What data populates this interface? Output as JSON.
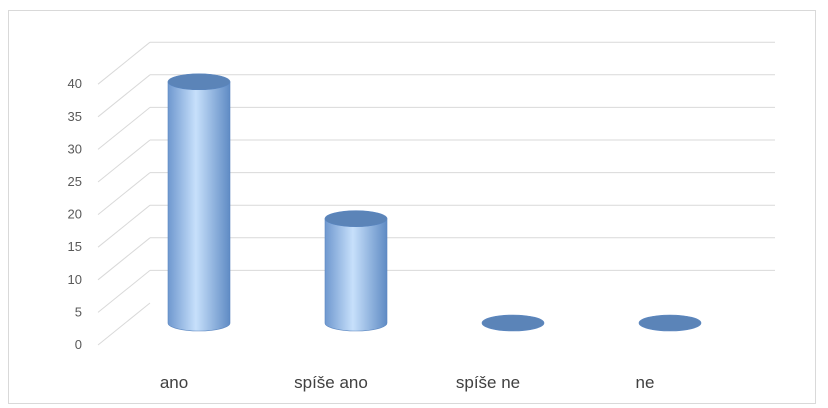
{
  "chart_data": {
    "type": "bar",
    "style": "3d-cylinder",
    "categories": [
      "ano",
      "spíše ano",
      "spíše ne",
      "ne"
    ],
    "values": [
      37,
      16,
      0,
      0
    ],
    "ylim": [
      0,
      40
    ],
    "yticks": [
      "0",
      "5",
      "10",
      "15",
      "20",
      "25",
      "30",
      "35",
      "40"
    ],
    "grid": true,
    "legend": "none",
    "colors": {
      "bar_light": "#bdd7f7",
      "bar_mid": "#8db4e2",
      "bar_dark": "#5a86c0",
      "bar_top": "#5b84b8",
      "grid": "#d9d9d9",
      "tick_text": "#595959",
      "category_text": "#404040"
    }
  }
}
